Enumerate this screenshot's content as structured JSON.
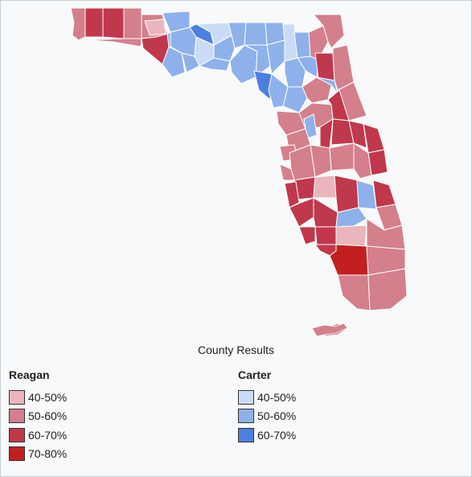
{
  "caption": "County Results",
  "colors": {
    "r40": "#eab6bd",
    "r50": "#d47f8c",
    "r60": "#c0384c",
    "r70": "#c22020",
    "c40": "#c9dbf6",
    "c50": "#8eb1ec",
    "c60": "#4d7fde"
  },
  "legend": {
    "reagan": {
      "title": "Reagan",
      "items": [
        {
          "label": "40-50%",
          "color": "#eab6bd"
        },
        {
          "label": "50-60%",
          "color": "#d47f8c"
        },
        {
          "label": "60-70%",
          "color": "#c0384c"
        },
        {
          "label": "70-80%",
          "color": "#c22020"
        }
      ]
    },
    "carter": {
      "title": "Carter",
      "items": [
        {
          "label": "40-50%",
          "color": "#c9dbf6"
        },
        {
          "label": "50-60%",
          "color": "#8eb1ec"
        },
        {
          "label": "60-70%",
          "color": "#4d7fde"
        }
      ]
    }
  }
}
